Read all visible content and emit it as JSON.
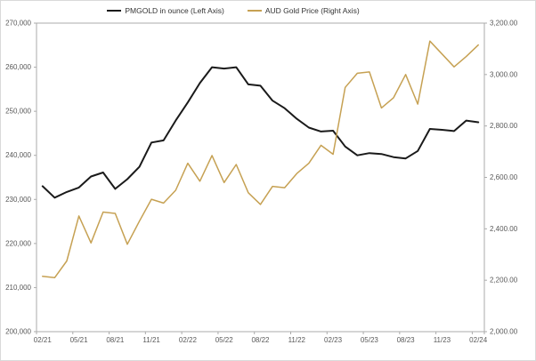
{
  "legend": {
    "series1_label": "PMGOLD in ounce (Left Axis)",
    "series2_label": "AUD Gold Price (Right Axis)"
  },
  "colors": {
    "series1": "#1A1A1A",
    "series2": "#C6A153",
    "axis": "#ABABAB",
    "tick_label": "#595959"
  },
  "chart_data": {
    "type": "line",
    "x": [
      "02/21",
      "03/21",
      "04/21",
      "05/21",
      "06/21",
      "07/21",
      "08/21",
      "09/21",
      "10/21",
      "11/21",
      "12/21",
      "01/22",
      "02/22",
      "03/22",
      "04/22",
      "05/22",
      "06/22",
      "07/22",
      "08/22",
      "09/22",
      "10/22",
      "11/22",
      "12/22",
      "01/23",
      "02/23",
      "03/23",
      "04/23",
      "05/23",
      "06/23",
      "07/23",
      "08/23",
      "09/23",
      "10/23",
      "11/23",
      "12/23",
      "01/24",
      "02/24"
    ],
    "series": [
      {
        "id": "pmgold-line",
        "name": "PMGOLD in ounce (Left Axis)",
        "axis": "left_axis",
        "color": "#1A1A1A",
        "values": [
          233000,
          230400,
          231700,
          232700,
          235200,
          236100,
          232400,
          234600,
          237400,
          242900,
          243400,
          247900,
          252000,
          256400,
          260000,
          259700,
          260000,
          256100,
          255800,
          252400,
          250700,
          248300,
          246300,
          245400,
          245600,
          242000,
          240000,
          240500,
          240300,
          239600,
          239300,
          241000,
          246000,
          245800,
          245500,
          247900,
          247500
        ]
      },
      {
        "id": "aud-gold-price-line",
        "name": "AUD Gold Price (Right Axis)",
        "axis": "right_axis",
        "color": "#C6A153",
        "values": [
          2215,
          2210,
          2275,
          2450,
          2345,
          2465,
          2460,
          2340,
          2430,
          2515,
          2500,
          2550,
          2655,
          2585,
          2685,
          2580,
          2650,
          2540,
          2495,
          2565,
          2560,
          2615,
          2655,
          2725,
          2690,
          2950,
          3005,
          3010,
          2870,
          2910,
          3000,
          2885,
          3130,
          3080,
          3030,
          3070,
          3115
        ]
      }
    ],
    "left_axis": {
      "min": 200000,
      "max": 270000,
      "step": 10000,
      "tick_labels": [
        "200,000",
        "210,000",
        "220,000",
        "230,000",
        "240,000",
        "250,000",
        "260,000",
        "270,000"
      ]
    },
    "right_axis": {
      "min": 2000,
      "max": 3200,
      "step": 200,
      "tick_labels": [
        "2,000.00",
        "2,200.00",
        "2,400.00",
        "2,600.00",
        "2,800.00",
        "3,000.00",
        "3,200.00"
      ]
    },
    "x_tick_labels": [
      "02/21",
      "05/21",
      "08/21",
      "11/21",
      "02/22",
      "05/22",
      "08/22",
      "11/22",
      "02/23",
      "05/23",
      "08/23",
      "11/23",
      "02/24"
    ],
    "x_tick_interval": 3,
    "grid": false,
    "legend_position": "top"
  }
}
